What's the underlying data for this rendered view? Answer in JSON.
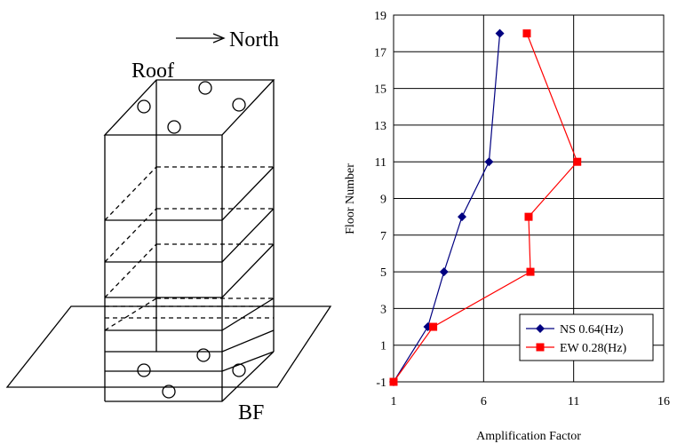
{
  "diagram": {
    "direction_label": "North",
    "roof_label": "Roof",
    "basement_label": "BF"
  },
  "chart_data": {
    "type": "line",
    "xlabel": "Amplification Factor",
    "ylabel": "Floor Number",
    "xlim": [
      1,
      16
    ],
    "ylim": [
      -1,
      19
    ],
    "xticks": [
      1,
      6,
      11,
      16
    ],
    "yticks": [
      -1,
      1,
      3,
      5,
      7,
      9,
      11,
      13,
      15,
      17,
      19
    ],
    "grid": true,
    "legend_position": "bottom-right",
    "series": [
      {
        "name": "NS 0.64(Hz)",
        "color": "#000080",
        "marker": "diamond",
        "points": [
          {
            "x": 1.0,
            "y": -1
          },
          {
            "x": 2.9,
            "y": 2
          },
          {
            "x": 3.8,
            "y": 5
          },
          {
            "x": 4.8,
            "y": 8
          },
          {
            "x": 6.3,
            "y": 11
          },
          {
            "x": 6.9,
            "y": 18
          }
        ]
      },
      {
        "name": "EW 0.28(Hz)",
        "color": "#ff0000",
        "marker": "square",
        "points": [
          {
            "x": 1.0,
            "y": -1
          },
          {
            "x": 3.2,
            "y": 2
          },
          {
            "x": 8.6,
            "y": 5
          },
          {
            "x": 8.5,
            "y": 8
          },
          {
            "x": 11.2,
            "y": 11
          },
          {
            "x": 8.4,
            "y": 18
          }
        ]
      }
    ]
  }
}
